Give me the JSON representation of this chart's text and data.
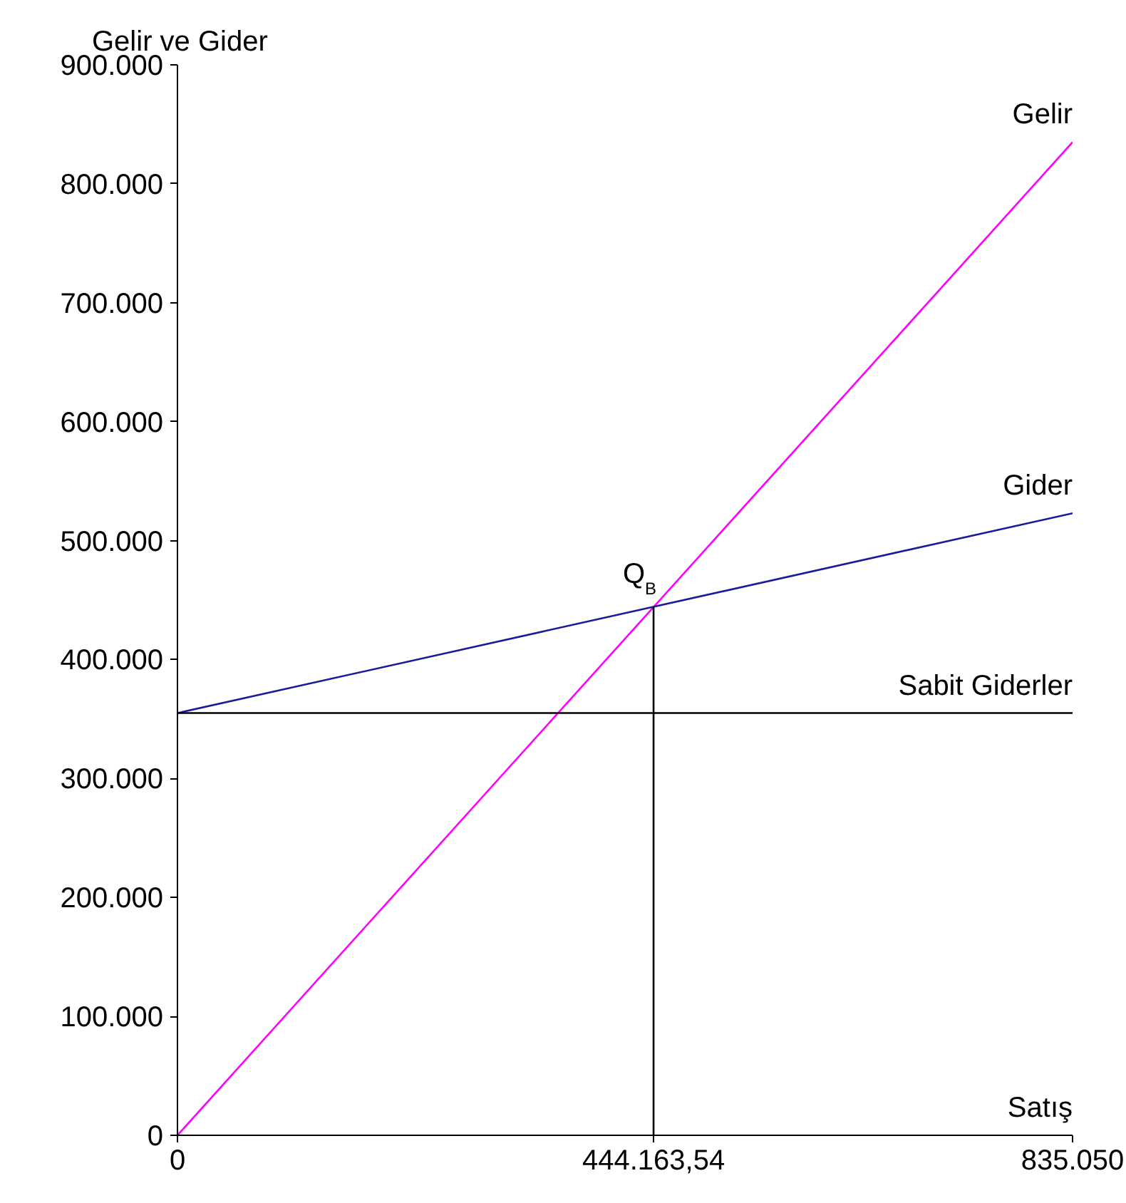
{
  "chart_data": {
    "type": "line",
    "xlabel": "Satış",
    "ylabel": "Gelir ve Gider",
    "xlim": [
      0,
      835050
    ],
    "ylim": [
      0,
      900000
    ],
    "xticks": [
      0,
      {
        "value": 444163.54,
        "label": "444.163,54"
      },
      {
        "value": 835050,
        "label": "835.050"
      }
    ],
    "yticks": [
      0,
      {
        "value": 100000,
        "label": "100.000"
      },
      {
        "value": 200000,
        "label": "200.000"
      },
      {
        "value": 300000,
        "label": "300.000"
      },
      {
        "value": 400000,
        "label": "400.000"
      },
      {
        "value": 500000,
        "label": "500.000"
      },
      {
        "value": 600000,
        "label": "600.000"
      },
      {
        "value": 700000,
        "label": "700.000"
      },
      {
        "value": 800000,
        "label": "800.000"
      },
      {
        "value": 900000,
        "label": "900.000"
      }
    ],
    "grid": false,
    "marker": "none",
    "line_style": "solid",
    "series": [
      {
        "name": "Gelir",
        "color": "#ff00ff",
        "x": [
          0,
          835050
        ],
        "values": [
          0,
          835000
        ]
      },
      {
        "name": "Gider",
        "color": "#1a1a9c",
        "x": [
          0,
          835050
        ],
        "values": [
          355000,
          523000
        ]
      },
      {
        "name": "Sabit Giderler",
        "color": "#000000",
        "x": [
          0,
          835050
        ],
        "values": [
          355000,
          355000
        ]
      },
      {
        "color": "#000000",
        "x": [
          444163.54,
          444163.54
        ],
        "values": [
          0,
          444000
        ]
      }
    ],
    "annotations": [
      {
        "text": "Q$_{B}$",
        "x": 444163.54,
        "y": 444000
      }
    ]
  }
}
